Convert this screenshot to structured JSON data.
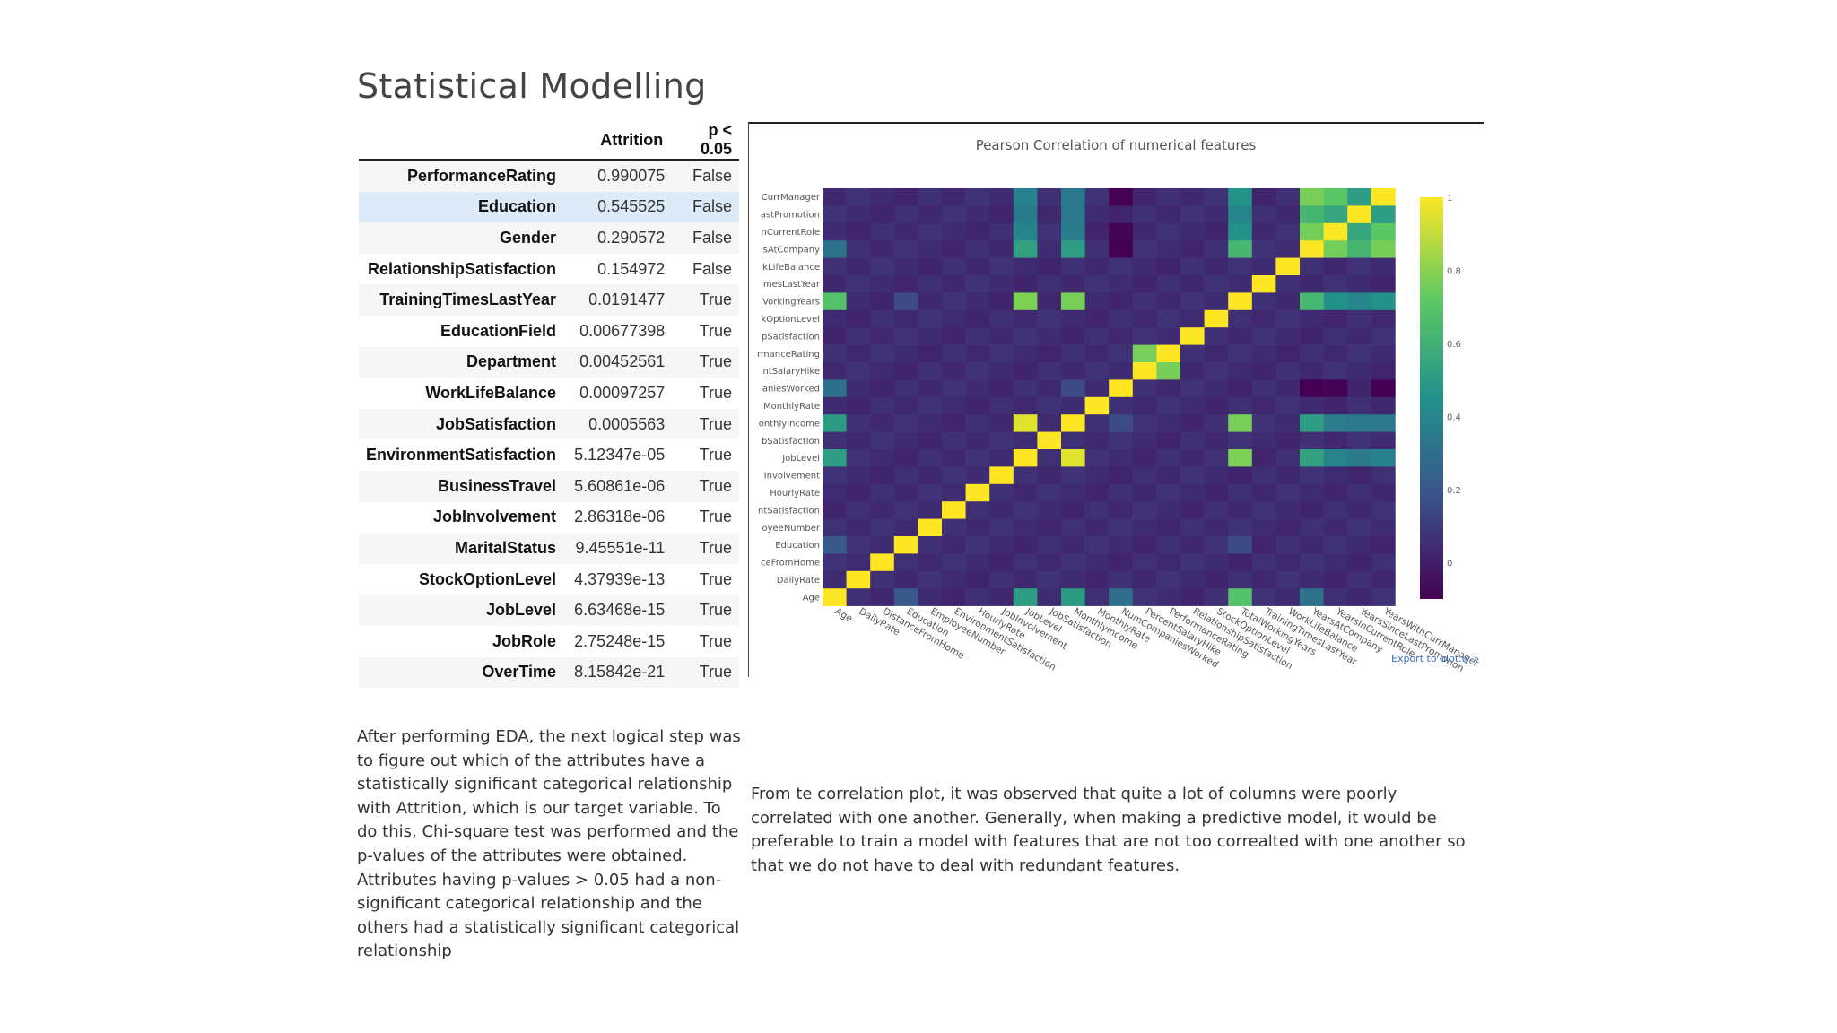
{
  "page": {
    "title": "Statistical Modelling"
  },
  "table": {
    "headers": {
      "name": "",
      "attrition": "Attrition",
      "significant": "p < 0.05"
    },
    "rows": [
      {
        "name": "PerformanceRating",
        "p_value": "0.990075",
        "significant": "False"
      },
      {
        "name": "Education",
        "p_value": "0.545525",
        "significant": "False"
      },
      {
        "name": "Gender",
        "p_value": "0.290572",
        "significant": "False"
      },
      {
        "name": "RelationshipSatisfaction",
        "p_value": "0.154972",
        "significant": "False"
      },
      {
        "name": "TrainingTimesLastYear",
        "p_value": "0.0191477",
        "significant": "True"
      },
      {
        "name": "EducationField",
        "p_value": "0.00677398",
        "significant": "True"
      },
      {
        "name": "Department",
        "p_value": "0.00452561",
        "significant": "True"
      },
      {
        "name": "WorkLifeBalance",
        "p_value": "0.00097257",
        "significant": "True"
      },
      {
        "name": "JobSatisfaction",
        "p_value": "0.0005563",
        "significant": "True"
      },
      {
        "name": "EnvironmentSatisfaction",
        "p_value": "5.12347e-05",
        "significant": "True"
      },
      {
        "name": "BusinessTravel",
        "p_value": "5.60861e-06",
        "significant": "True"
      },
      {
        "name": "JobInvolvement",
        "p_value": "2.86318e-06",
        "significant": "True"
      },
      {
        "name": "MaritalStatus",
        "p_value": "9.45551e-11",
        "significant": "True"
      },
      {
        "name": "StockOptionLevel",
        "p_value": "4.37939e-13",
        "significant": "True"
      },
      {
        "name": "JobLevel",
        "p_value": "6.63468e-15",
        "significant": "True"
      },
      {
        "name": "JobRole",
        "p_value": "2.75248e-15",
        "significant": "True"
      },
      {
        "name": "OverTime",
        "p_value": "8.15842e-21",
        "significant": "True"
      }
    ],
    "highlighted_row": "Education"
  },
  "chart": {
    "export_link": "Export to plot.ly »",
    "colors": {
      "low": "#440154",
      "mid": "#21918c",
      "high": "#fde725"
    }
  },
  "chart_data": {
    "type": "heatmap",
    "title": "Pearson Correlation of numerical features",
    "x_labels": [
      "Age",
      "DailyRate",
      "DistanceFromHome",
      "Education",
      "EmployeeNumber",
      "EnvironmentSatisfaction",
      "HourlyRate",
      "JobInvolvement",
      "JobLevel",
      "JobSatisfaction",
      "MonthlyIncome",
      "MonthlyRate",
      "NumCompaniesWorked",
      "PercentSalaryHike",
      "PerformanceRating",
      "RelationshipSatisfaction",
      "StockOptionLevel",
      "TotalWorkingYears",
      "TrainingTimesLastYear",
      "WorkLifeBalance",
      "YearsAtCompany",
      "YearsInCurrentRole",
      "YearsSinceLastPromotion",
      "YearsWithCurrManager"
    ],
    "y_labels_visible": [
      "Age",
      "DailyRate",
      "ceFromHome",
      "Education",
      "oyeeNumber",
      "ntSatisfaction",
      "HourlyRate",
      "Involvement",
      "JobLevel",
      "bSatisfaction",
      "onthlyIncome",
      "MonthlyRate",
      "aniesWorked",
      "ntSalaryHike",
      "rmanceRating",
      "pSatisfaction",
      "kOptionLevel",
      "VorkingYears",
      "mesLastYear",
      "kLifeBalance",
      "sAtCompany",
      "nCurrentRole",
      "astPromotion",
      "CurrManager"
    ],
    "colorbar": {
      "min": -0.1,
      "max": 1,
      "ticks": [
        "1",
        "0.8",
        "0.6",
        "0.4",
        "0.2",
        "0"
      ]
    },
    "strong_pairs": [
      [
        "JobLevel",
        "MonthlyIncome",
        0.95
      ],
      [
        "JobLevel",
        "TotalWorkingYears",
        0.78
      ],
      [
        "MonthlyIncome",
        "TotalWorkingYears",
        0.77
      ],
      [
        "PercentSalaryHike",
        "PerformanceRating",
        0.77
      ],
      [
        "YearsAtCompany",
        "YearsWithCurrManager",
        0.77
      ],
      [
        "YearsAtCompany",
        "YearsInCurrentRole",
        0.76
      ],
      [
        "YearsInCurrentRole",
        "YearsWithCurrManager",
        0.71
      ],
      [
        "Age",
        "TotalWorkingYears",
        0.68
      ],
      [
        "TotalWorkingYears",
        "YearsAtCompany",
        0.63
      ],
      [
        "YearsAtCompany",
        "YearsSinceLastPromotion",
        0.62
      ],
      [
        "TotalWorkingYears",
        "YearsInCurrentRole",
        0.46
      ],
      [
        "TotalWorkingYears",
        "YearsWithCurrManager",
        0.46
      ],
      [
        "MonthlyIncome",
        "YearsAtCompany",
        0.51
      ],
      [
        "JobLevel",
        "YearsAtCompany",
        0.53
      ],
      [
        "JobLevel",
        "YearsInCurrentRole",
        0.39
      ],
      [
        "JobLevel",
        "YearsWithCurrManager",
        0.38
      ],
      [
        "MonthlyIncome",
        "YearsInCurrentRole",
        0.36
      ],
      [
        "MonthlyIncome",
        "YearsWithCurrManager",
        0.34
      ],
      [
        "Age",
        "JobLevel",
        0.51
      ],
      [
        "Age",
        "MonthlyIncome",
        0.5
      ],
      [
        "YearsInCurrentRole",
        "YearsSinceLastPromotion",
        0.55
      ],
      [
        "YearsSinceLastPromotion",
        "YearsWithCurrManager",
        0.51
      ],
      [
        "TotalWorkingYears",
        "YearsSinceLastPromotion",
        0.4
      ],
      [
        "Age",
        "YearsAtCompany",
        0.31
      ],
      [
        "Age",
        "NumCompaniesWorked",
        0.3
      ],
      [
        "MonthlyIncome",
        "NumCompaniesWorked",
        0.15
      ],
      [
        "JobLevel",
        "YearsSinceLastPromotion",
        0.35
      ],
      [
        "MonthlyIncome",
        "YearsSinceLastPromotion",
        0.34
      ],
      [
        "Education",
        "Age",
        0.21
      ],
      [
        "Education",
        "TotalWorkingYears",
        0.15
      ],
      [
        "NumCompaniesWorked",
        "YearsAtCompany",
        -0.12
      ],
      [
        "NumCompaniesWorked",
        "YearsInCurrentRole",
        -0.09
      ],
      [
        "NumCompaniesWorked",
        "YearsWithCurrManager",
        -0.11
      ]
    ]
  },
  "paragraphs": {
    "left": "After performing EDA, the next logical step was to figure out which of the attributes have a statistically significant categorical relationship with Attrition, which is our target variable. To do this, Chi-square test was performed and the p-values of the attributes were obtained. Attributes having p-values > 0.05 had a non-significant categorical relationship and the others had a statistically significant categorical relationship",
    "right": "From te correlation plot, it was observed that quite a lot of columns were poorly correlated with one another. Generally, when making a predictive model, it would be preferable to train a model with features that are not too correalted with one another so that we do not have to deal with redundant features."
  }
}
